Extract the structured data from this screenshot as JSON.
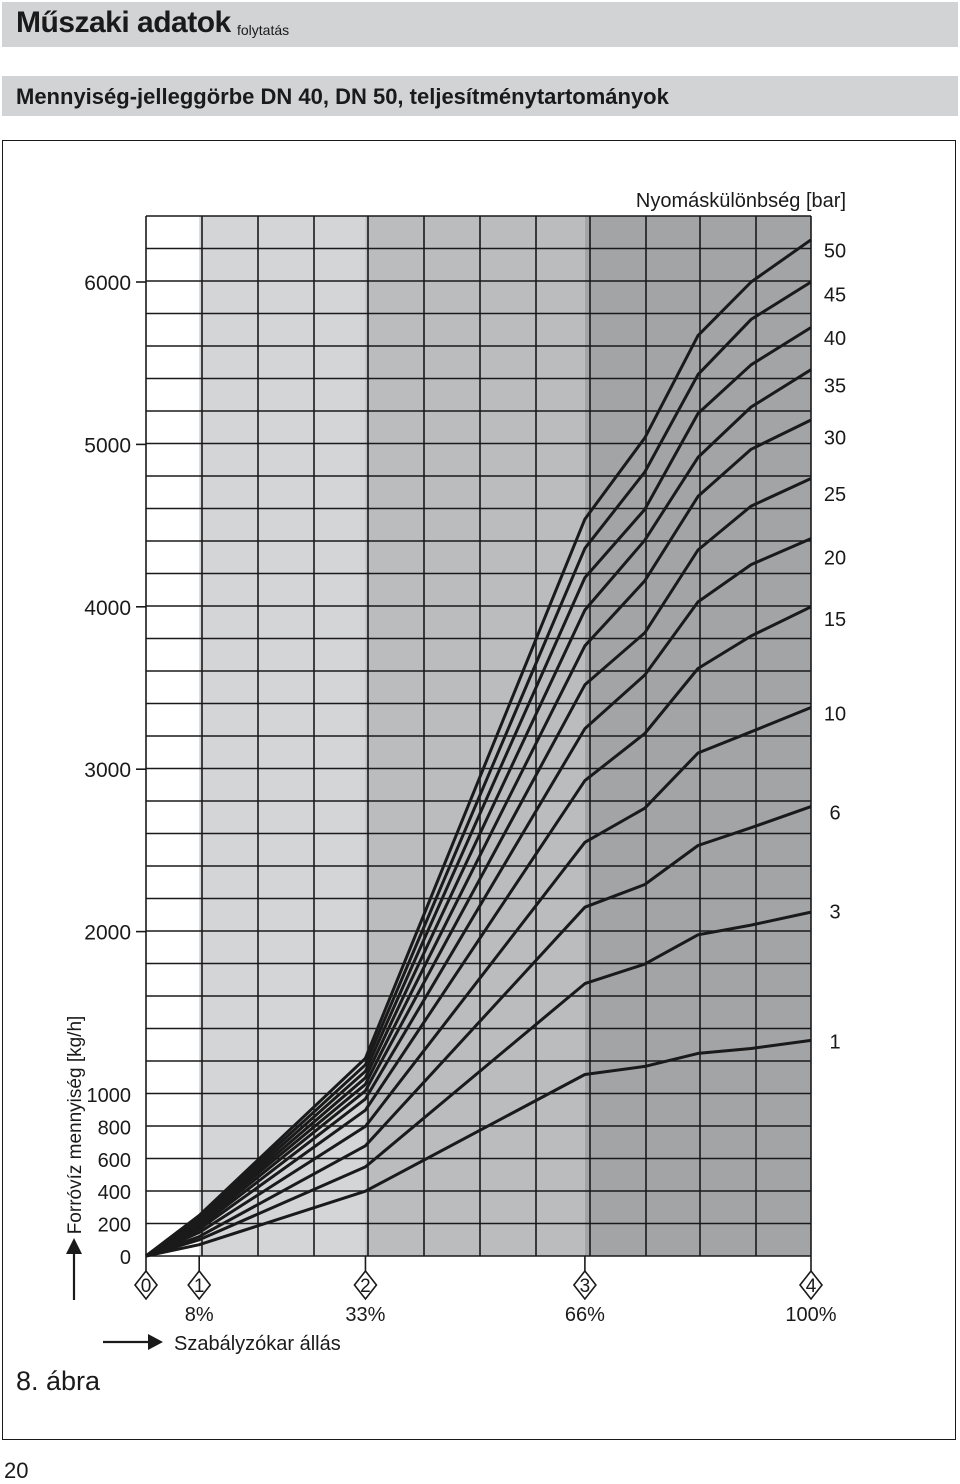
{
  "header": {
    "title": "Műszaki adatok",
    "title_suffix": "folytatás",
    "section": "Mennyiség-jelleggörbe DN 40, DN 50, teljesítménytartományok"
  },
  "figure_label": "8. ábra",
  "page_number": "20",
  "chart_data": {
    "type": "line",
    "title": "",
    "ylabel": "Forróvíz mennyiség [kg/h]",
    "xlabel": "Szabályzókar állás",
    "series_title": "Nyomáskülönbség [bar]",
    "ylim": [
      0,
      6000
    ],
    "y_scale": "piecewise: 0–1000 compressed, 1000–6000 linear",
    "y_ticks_lower": [
      "0",
      "200",
      "400",
      "600",
      "800",
      "1000"
    ],
    "y_ticks_upper": [
      "2000",
      "3000",
      "4000",
      "5000",
      "6000"
    ],
    "x_positions": [
      {
        "marker": "0",
        "percent": ""
      },
      {
        "marker": "1",
        "percent": "8%"
      },
      {
        "marker": "2",
        "percent": "33%"
      },
      {
        "marker": "3",
        "percent": "66%"
      },
      {
        "marker": "4",
        "percent": "100%"
      }
    ],
    "x_values_percent": [
      0,
      8,
      33,
      66,
      100
    ],
    "zones": [
      {
        "from": 0,
        "to": 8,
        "color": "#ffffff"
      },
      {
        "from": 8,
        "to": 33,
        "color": "#d4d5d7"
      },
      {
        "from": 33,
        "to": 66,
        "color": "#bbbcbe"
      },
      {
        "from": 66,
        "to": 100,
        "color": "#a3a4a6"
      }
    ],
    "series": [
      {
        "name": "1",
        "points": [
          [
            0,
            0
          ],
          [
            8,
            70
          ],
          [
            33,
            400
          ],
          [
            66,
            1120
          ],
          [
            75,
            1170
          ],
          [
            83,
            1250
          ],
          [
            91,
            1280
          ],
          [
            100,
            1330
          ]
        ]
      },
      {
        "name": "3",
        "points": [
          [
            0,
            0
          ],
          [
            8,
            100
          ],
          [
            33,
            550
          ],
          [
            66,
            1680
          ],
          [
            75,
            1800
          ],
          [
            83,
            1980
          ],
          [
            91,
            2040
          ],
          [
            100,
            2120
          ]
        ]
      },
      {
        "name": "6",
        "points": [
          [
            0,
            0
          ],
          [
            8,
            120
          ],
          [
            33,
            680
          ],
          [
            66,
            2150
          ],
          [
            75,
            2290
          ],
          [
            83,
            2530
          ],
          [
            91,
            2640
          ],
          [
            100,
            2770
          ]
        ]
      },
      {
        "name": "10",
        "points": [
          [
            0,
            0
          ],
          [
            8,
            145
          ],
          [
            33,
            800
          ],
          [
            66,
            2550
          ],
          [
            75,
            2760
          ],
          [
            83,
            3100
          ],
          [
            91,
            3230
          ],
          [
            100,
            3380
          ]
        ]
      },
      {
        "name": "15",
        "points": [
          [
            0,
            0
          ],
          [
            8,
            165
          ],
          [
            33,
            900
          ],
          [
            66,
            2930
          ],
          [
            75,
            3220
          ],
          [
            83,
            3620
          ],
          [
            91,
            3820
          ],
          [
            100,
            4000
          ]
        ]
      },
      {
        "name": "20",
        "points": [
          [
            0,
            0
          ],
          [
            8,
            180
          ],
          [
            33,
            970
          ],
          [
            66,
            3250
          ],
          [
            75,
            3580
          ],
          [
            83,
            4030
          ],
          [
            91,
            4260
          ],
          [
            100,
            4420
          ]
        ]
      },
      {
        "name": "25",
        "points": [
          [
            0,
            0
          ],
          [
            8,
            195
          ],
          [
            33,
            1020
          ],
          [
            66,
            3520
          ],
          [
            75,
            3840
          ],
          [
            83,
            4350
          ],
          [
            91,
            4620
          ],
          [
            100,
            4790
          ]
        ]
      },
      {
        "name": "30",
        "points": [
          [
            0,
            0
          ],
          [
            8,
            210
          ],
          [
            33,
            1060
          ],
          [
            66,
            3760
          ],
          [
            75,
            4160
          ],
          [
            83,
            4680
          ],
          [
            91,
            4970
          ],
          [
            100,
            5150
          ]
        ]
      },
      {
        "name": "35",
        "points": [
          [
            0,
            0
          ],
          [
            8,
            220
          ],
          [
            33,
            1100
          ],
          [
            66,
            3980
          ],
          [
            75,
            4410
          ],
          [
            83,
            4920
          ],
          [
            91,
            5230
          ],
          [
            100,
            5460
          ]
        ]
      },
      {
        "name": "40",
        "points": [
          [
            0,
            0
          ],
          [
            8,
            230
          ],
          [
            33,
            1140
          ],
          [
            66,
            4180
          ],
          [
            75,
            4600
          ],
          [
            83,
            5190
          ],
          [
            91,
            5490
          ],
          [
            100,
            5720
          ]
        ]
      },
      {
        "name": "45",
        "points": [
          [
            0,
            0
          ],
          [
            8,
            240
          ],
          [
            33,
            1180
          ],
          [
            66,
            4360
          ],
          [
            75,
            4830
          ],
          [
            83,
            5430
          ],
          [
            91,
            5770
          ],
          [
            100,
            6000
          ]
        ]
      },
      {
        "name": "50",
        "points": [
          [
            0,
            0
          ],
          [
            8,
            250
          ],
          [
            33,
            1220
          ],
          [
            66,
            4540
          ],
          [
            75,
            5040
          ],
          [
            83,
            5670
          ],
          [
            91,
            6000
          ],
          [
            100,
            6260
          ]
        ]
      }
    ],
    "label_positions": {
      "1": 1330,
      "3": 2130,
      "6": 2740,
      "10": 3350,
      "15": 3930,
      "20": 4310,
      "25": 4700,
      "30": 5050,
      "35": 5370,
      "40": 5660,
      "45": 5930,
      "50": 6200
    }
  }
}
